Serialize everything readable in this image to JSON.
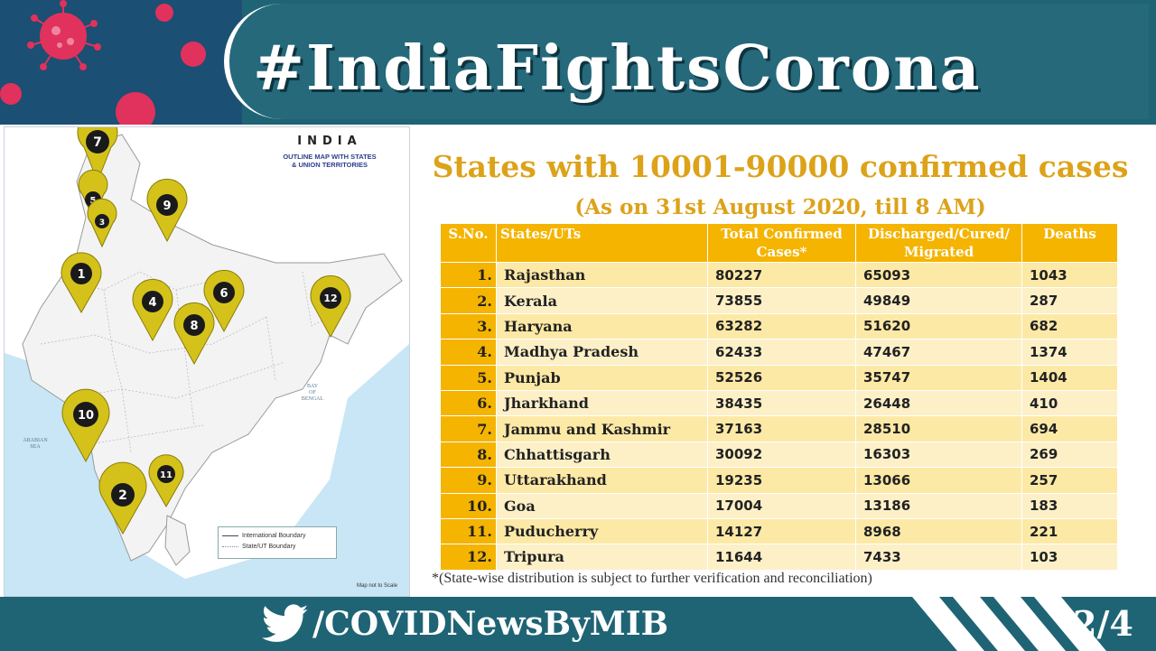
{
  "header": {
    "hashtag": "#IndiaFightsCorona"
  },
  "map": {
    "title": "INDIA",
    "subtitle_line1": "OUTLINE MAP WITH STATES",
    "subtitle_line2": "& UNION TERRITORIES",
    "arabian_sea": "ARABIAN SEA",
    "bay_of_bengal_1": "BAY",
    "bay_of_bengal_2": "OF",
    "bay_of_bengal_3": "BENGAL",
    "legend_international": "International Boundary",
    "legend_state": "State/UT Boundary",
    "scale_note": "Map not to Scale",
    "pins": [
      "1",
      "2",
      "3",
      "4",
      "5",
      "6",
      "7",
      "8",
      "9",
      "10",
      "11",
      "12"
    ],
    "pin_color": "#d4c21a"
  },
  "main": {
    "heading": "States with 10001-90000 confirmed cases",
    "subheading": "(As on 31st August 2020, till 8 AM)",
    "columns": {
      "sno": "S.No.",
      "state": "States/UTs",
      "confirmed_1": "Total Confirmed",
      "confirmed_2": "Cases*",
      "discharged_1": "Discharged/Cured/",
      "discharged_2": "Migrated",
      "deaths": "Deaths"
    },
    "rows": [
      {
        "sno": "1.",
        "state": "Rajasthan",
        "confirmed": "80227",
        "discharged": "65093",
        "deaths": "1043"
      },
      {
        "sno": "2.",
        "state": "Kerala",
        "confirmed": "73855",
        "discharged": "49849",
        "deaths": "287"
      },
      {
        "sno": "3.",
        "state": "Haryana",
        "confirmed": "63282",
        "discharged": "51620",
        "deaths": "682"
      },
      {
        "sno": "4.",
        "state": "Madhya Pradesh",
        "confirmed": "62433",
        "discharged": "47467",
        "deaths": "1374"
      },
      {
        "sno": "5.",
        "state": "Punjab",
        "confirmed": "52526",
        "discharged": "35747",
        "deaths": "1404"
      },
      {
        "sno": "6.",
        "state": "Jharkhand",
        "confirmed": "38435",
        "discharged": "26448",
        "deaths": "410"
      },
      {
        "sno": "7.",
        "state": "Jammu and Kashmir",
        "confirmed": "37163",
        "discharged": "28510",
        "deaths": "694"
      },
      {
        "sno": "8.",
        "state": "Chhattisgarh",
        "confirmed": "30092",
        "discharged": "16303",
        "deaths": "269"
      },
      {
        "sno": "9.",
        "state": "Uttarakhand",
        "confirmed": "19235",
        "discharged": "13066",
        "deaths": "257"
      },
      {
        "sno": "10.",
        "state": "Goa",
        "confirmed": "17004",
        "discharged": "13186",
        "deaths": "183"
      },
      {
        "sno": "11.",
        "state": "Puducherry",
        "confirmed": "14127",
        "discharged": "8968",
        "deaths": "221"
      },
      {
        "sno": "12.",
        "state": "Tripura",
        "confirmed": "11644",
        "discharged": "7433",
        "deaths": "103"
      }
    ],
    "footnote": "*(State-wise distribution is subject to further verification and reconciliation)"
  },
  "footer": {
    "handle": "/COVIDNewsByMIB",
    "page": "2/4",
    "icon": "twitter-bird-icon"
  },
  "colors": {
    "teal": "#1f6474",
    "gold_heading": "#dca219",
    "table_header": "#f5b400"
  }
}
